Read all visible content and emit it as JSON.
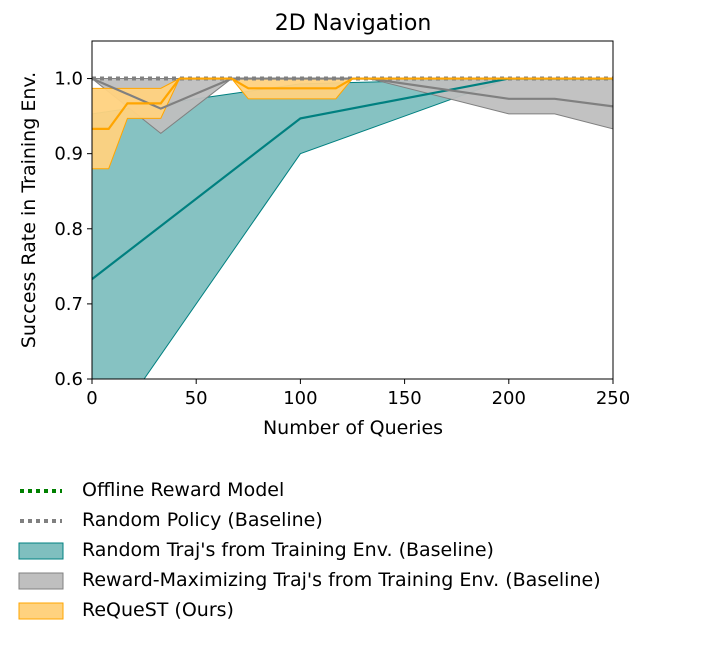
{
  "chart_data": {
    "type": "line",
    "title": "2D Navigation",
    "xlabel": "Number of Queries",
    "ylabel": "Success Rate in Training Env.",
    "xlim": [
      0,
      250
    ],
    "ylim": [
      0.6,
      1.05
    ],
    "xticks": [
      0,
      50,
      100,
      150,
      200,
      250
    ],
    "xtick_labels": [
      "0",
      "50",
      "100",
      "150",
      "200",
      "250"
    ],
    "yticks": [
      0.6,
      0.7,
      0.8,
      0.9,
      1.0
    ],
    "ytick_labels": [
      "0.6",
      "0.7",
      "0.8",
      "0.9",
      "1.0"
    ],
    "grid": false,
    "legend_position": "below",
    "series": [
      {
        "name": "Offline Reward Model",
        "style": "dotted",
        "color": "#008000",
        "x": [
          0,
          250
        ],
        "y": [
          1.0,
          1.0
        ]
      },
      {
        "name": "Random Policy (Baseline)",
        "style": "dotted",
        "color": "#808080",
        "x": [
          0,
          250
        ],
        "y": [
          1.0,
          1.0
        ]
      },
      {
        "name": "Random Traj's from Training Env. (Baseline)",
        "style": "band",
        "color": "#008080",
        "fill": "#7fbfbf",
        "x": [
          0,
          100,
          200,
          250
        ],
        "y": [
          0.733,
          0.947,
          1.0,
          1.0
        ],
        "lower": [
          0.5,
          0.9,
          1.0,
          1.0
        ],
        "upper": [
          0.953,
          0.993,
          1.0,
          1.0
        ]
      },
      {
        "name": "Reward-Maximizing Traj's from Training Env. (Baseline)",
        "style": "band",
        "color": "#808080",
        "fill": "#bfbfbf",
        "x": [
          0,
          33,
          67,
          100,
          133,
          200,
          222,
          250
        ],
        "y": [
          1.0,
          0.96,
          1.0,
          1.0,
          1.0,
          0.973,
          0.973,
          0.963
        ],
        "lower": [
          1.0,
          0.927,
          1.0,
          1.0,
          1.0,
          0.953,
          0.953,
          0.933
        ],
        "upper": [
          1.0,
          1.0,
          1.0,
          1.0,
          1.0,
          1.0,
          1.0,
          1.0
        ]
      },
      {
        "name": "ReQueST (Ours)",
        "style": "band",
        "color": "#ffa500",
        "fill": "#ffd27f",
        "x": [
          0,
          8,
          17,
          25,
          33,
          42,
          67,
          75,
          83,
          100,
          117,
          125,
          250
        ],
        "y": [
          0.933,
          0.933,
          0.967,
          0.967,
          0.967,
          1.0,
          1.0,
          0.987,
          0.987,
          0.987,
          0.987,
          1.0,
          1.0
        ],
        "lower": [
          0.88,
          0.88,
          0.947,
          0.947,
          0.947,
          1.0,
          1.0,
          0.973,
          0.973,
          0.973,
          0.973,
          1.0,
          1.0
        ],
        "upper": [
          0.987,
          0.987,
          0.987,
          0.987,
          0.987,
          1.0,
          1.0,
          1.0,
          1.0,
          1.0,
          1.0,
          1.0,
          1.0
        ]
      }
    ]
  },
  "legend": [
    {
      "label": "Offline Reward Model",
      "kind": "line",
      "color": "#008000"
    },
    {
      "label": "Random Policy (Baseline)",
      "kind": "line",
      "color": "#808080"
    },
    {
      "label": "Random Traj's from Training Env. (Baseline)",
      "kind": "patch",
      "color": "#7fbfbf",
      "edge": "#008080"
    },
    {
      "label": "Reward-Maximizing Traj's from Training Env. (Baseline)",
      "kind": "patch",
      "color": "#bfbfbf",
      "edge": "#808080"
    },
    {
      "label": "ReQueST (Ours)",
      "kind": "patch",
      "color": "#ffd27f",
      "edge": "#ffa500"
    }
  ]
}
